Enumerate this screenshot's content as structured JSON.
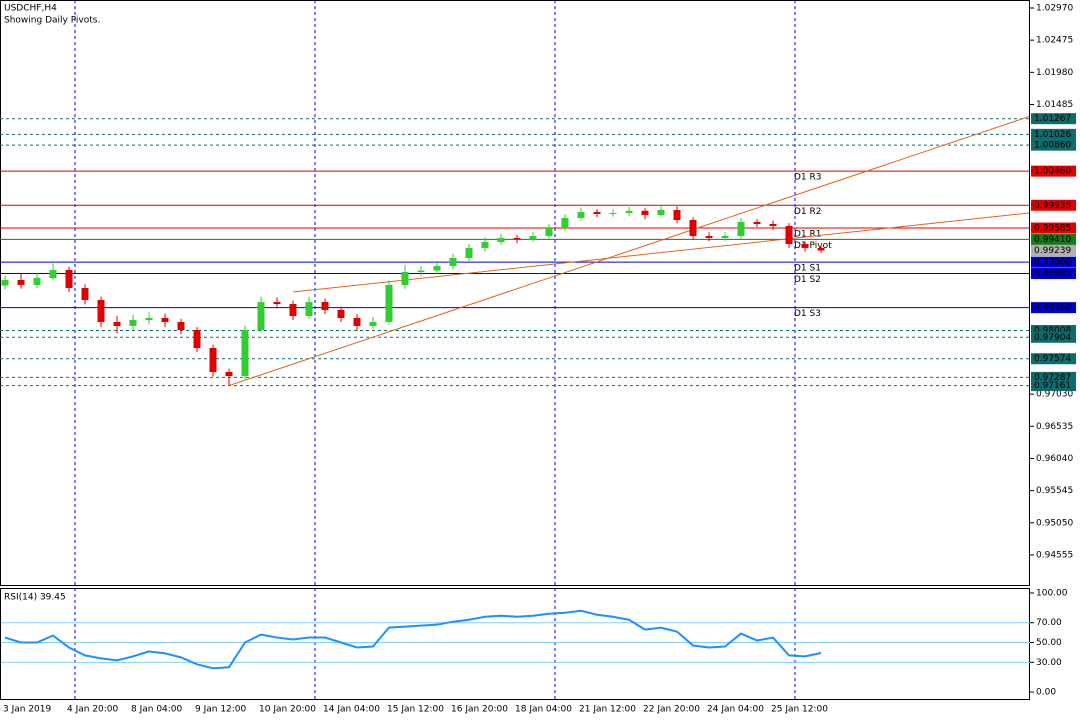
{
  "chart_data": {
    "type": "candlestick",
    "title": "USDCHF,H4",
    "subtitle": "Showing Daily Pivots.",
    "up_color": "#32cd32",
    "down_color": "#e00000",
    "ylim": [
      0.94093,
      1.03093
    ],
    "yticks": [
      {
        "value": 1.0297,
        "label": "1.02970"
      },
      {
        "value": 1.02475,
        "label": "1.02475"
      },
      {
        "value": 1.0198,
        "label": "1.01980"
      },
      {
        "value": 1.01485,
        "label": "1.01485"
      },
      {
        "value": 0.9703,
        "label": "0.97030"
      },
      {
        "value": 0.96535,
        "label": "0.96535"
      },
      {
        "value": 0.9604,
        "label": "0.96040"
      },
      {
        "value": 0.95545,
        "label": "0.95545"
      },
      {
        "value": 0.9505,
        "label": "0.95050"
      },
      {
        "value": 0.94555,
        "label": "0.94555"
      }
    ],
    "categories": [
      "3 Jan 2019",
      null,
      null,
      null,
      "4 Jan 20:00",
      null,
      null,
      null,
      "8 Jan 04:00",
      null,
      null,
      null,
      "9 Jan 12:00",
      null,
      null,
      null,
      "10 Jan 20:00",
      null,
      null,
      null,
      "14 Jan 04:00",
      null,
      null,
      null,
      "15 Jan 12:00",
      null,
      null,
      null,
      "16 Jan 20:00",
      null,
      null,
      null,
      "18 Jan 04:00",
      null,
      null,
      null,
      "21 Jan 12:00",
      null,
      null,
      null,
      "22 Jan 20:00",
      null,
      null,
      null,
      "24 Jan 04:00",
      null,
      null,
      null,
      "25 Jan 12:00",
      null,
      null,
      null
    ],
    "open": [
      0.987,
      0.98785,
      0.98709,
      0.98816,
      0.98939,
      0.98662,
      0.98478,
      0.98139,
      0.98078,
      0.9817,
      0.98201,
      0.98139,
      0.98016,
      0.97739,
      0.9737,
      0.97308,
      0.98016,
      0.98447,
      0.98416,
      0.98232,
      0.98447,
      0.98324,
      0.98201,
      0.98078,
      0.98139,
      0.98709,
      0.98908,
      0.9893,
      0.99001,
      0.99124,
      0.99278,
      0.9937,
      0.99432,
      0.9941,
      0.99462,
      0.99585,
      0.99739,
      0.99832,
      0.99801,
      0.99816,
      0.9985,
      0.99785,
      0.99862,
      0.99708,
      0.99462,
      0.99432,
      0.99462,
      0.99678,
      0.99647,
      0.99616,
      0.99339,
      0.99278
    ],
    "high": [
      0.9885,
      0.9888,
      0.9889,
      0.9904,
      0.9899,
      0.9872,
      0.9853,
      0.9823,
      0.9825,
      0.9829,
      0.9827,
      0.9819,
      0.9806,
      0.9779,
      0.9742,
      0.9808,
      0.9853,
      0.9852,
      0.9847,
      0.9853,
      0.985,
      0.9838,
      0.9826,
      0.9822,
      0.9878,
      0.9902,
      0.99,
      0.9908,
      0.9919,
      0.9934,
      0.9944,
      0.995,
      0.9948,
      0.9952,
      0.9965,
      0.998,
      0.999,
      0.9988,
      0.9987,
      0.9991,
      0.9989,
      0.99935,
      0.9992,
      0.9975,
      0.9952,
      0.9952,
      0.9974,
      0.9972,
      0.997,
      0.9966,
      0.9938,
      0.9932
    ],
    "low": [
      0.9864,
      0.9865,
      0.9866,
      0.9878,
      0.986,
      0.9841,
      0.9806,
      0.9796,
      0.9801,
      0.981,
      0.9806,
      0.9795,
      0.9768,
      0.973,
      0.97161,
      0.9725,
      0.9798,
      0.9835,
      0.9817,
      0.9819,
      0.9826,
      0.9814,
      0.98008,
      0.9803,
      0.981,
      0.9865,
      0.9884,
      0.9888,
      0.9895,
      0.9908,
      0.9922,
      0.9933,
      0.9935,
      0.9937,
      0.9942,
      0.9954,
      0.997,
      0.9975,
      0.9976,
      0.9977,
      0.9972,
      0.9976,
      0.9966,
      0.9941,
      0.9938,
      0.9939,
      0.9942,
      0.996,
      0.9956,
      0.9928,
      0.9922,
      0.992
    ],
    "close": [
      0.98785,
      0.98709,
      0.98816,
      0.98939,
      0.98662,
      0.98478,
      0.98139,
      0.98078,
      0.9817,
      0.98201,
      0.98139,
      0.98016,
      0.97739,
      0.9737,
      0.97308,
      0.98016,
      0.98447,
      0.98416,
      0.98232,
      0.98447,
      0.98324,
      0.98201,
      0.98078,
      0.98139,
      0.98709,
      0.98908,
      0.9893,
      0.99001,
      0.99124,
      0.99278,
      0.9937,
      0.99432,
      0.9941,
      0.99462,
      0.99585,
      0.99739,
      0.99832,
      0.99801,
      0.99816,
      0.9985,
      0.99785,
      0.99862,
      0.99708,
      0.99462,
      0.99432,
      0.99462,
      0.99678,
      0.99647,
      0.99616,
      0.99339,
      0.99278,
      0.99239
    ],
    "levels": [
      {
        "value": 1.01267,
        "label": "1.01267",
        "color": "#0f6b6b",
        "style": "dotted"
      },
      {
        "value": 1.01026,
        "label": "1.01026",
        "color": "#0f6b6b",
        "style": "dotted"
      },
      {
        "value": 1.0086,
        "label": "1.00860",
        "color": "#0f6b6b",
        "style": "dotted"
      },
      {
        "value": 1.0046,
        "label": "1.00460",
        "name": "D1 R3",
        "color": "#e00000",
        "style": "solid"
      },
      {
        "value": 0.99935,
        "label": "0.99935",
        "name": "D1 R2",
        "color": "#e00000",
        "style": "solid"
      },
      {
        "value": 0.99585,
        "label": "0.99585",
        "name": "D1 R1",
        "color": "#e00000",
        "style": "solid"
      },
      {
        "value": 0.9941,
        "label": "0.99410",
        "name": "D1 Pivot",
        "color": "#1a7a1a",
        "style": "solid"
      },
      {
        "value": 0.99239,
        "label": "0.99239",
        "color": "#b0b0b0",
        "style": "none"
      },
      {
        "value": 0.9906,
        "label": "0.99060",
        "name": "D1 S1",
        "color": "#0000cc",
        "style": "solid"
      },
      {
        "value": 0.98885,
        "label": "0.98885",
        "name": "D1 S2",
        "color": "#0000cc",
        "style": "solid"
      },
      {
        "value": 0.9836,
        "label": "0.98360",
        "name": "D1 S3",
        "color": "#0000cc",
        "style": "solid"
      },
      {
        "value": 0.98008,
        "label": "0.98008",
        "color": "#0f6b6b",
        "style": "dotted"
      },
      {
        "value": 0.97904,
        "label": "0.97904",
        "color": "#0f6b6b",
        "style": "dotted"
      },
      {
        "value": 0.97574,
        "label": "0.97574",
        "color": "#0f6b6b",
        "style": "dotted"
      },
      {
        "value": 0.97287,
        "label": "0.97287",
        "color": "#0f6b6b",
        "style": "dotted"
      },
      {
        "value": 0.97161,
        "label": "0.97161",
        "color": "#0f6b6b",
        "style": "dotted"
      }
    ],
    "trendlines": [
      {
        "x": [
          14,
          64
        ],
        "y": [
          0.97161,
          1.013
        ],
        "color": "#e0651e"
      },
      {
        "x": [
          18,
          64
        ],
        "y": [
          0.986,
          0.99816
        ],
        "color": "#e0651e"
      }
    ],
    "rsi": {
      "label": "RSI(14) 39.45",
      "color": "#1e90ff",
      "ylim": [
        -8,
        105
      ],
      "yticks": [
        {
          "value": 100,
          "label": "100.00"
        },
        {
          "value": 70,
          "label": "70.00"
        },
        {
          "value": 50,
          "label": "50.00"
        },
        {
          "value": 30,
          "label": "30.00"
        },
        {
          "value": 0,
          "label": "0.00"
        }
      ],
      "levels": [
        70,
        50,
        30
      ],
      "values": [
        55,
        50,
        50,
        57,
        45,
        37,
        34,
        32,
        36,
        41,
        39,
        35,
        28,
        24,
        25,
        50,
        58,
        55,
        53,
        55,
        55,
        50,
        45,
        46,
        65,
        66,
        67,
        68,
        71,
        73,
        76,
        77,
        76,
        77,
        79,
        80,
        82,
        78,
        76,
        73,
        63,
        65,
        61,
        47,
        45,
        46,
        59,
        52,
        55,
        37,
        36,
        39.45
      ]
    }
  }
}
